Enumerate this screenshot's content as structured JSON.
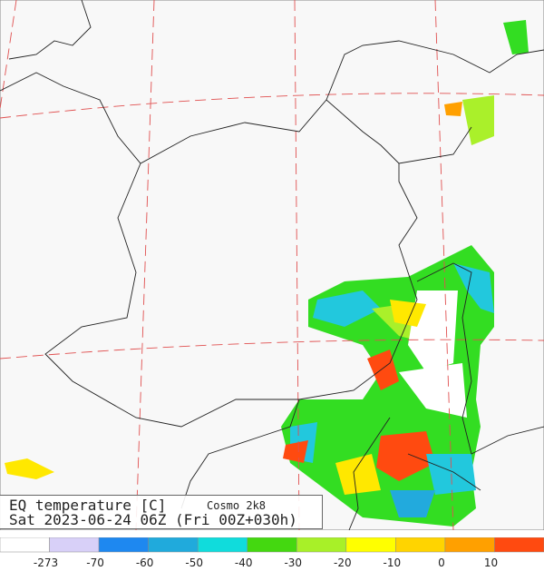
{
  "header": {
    "title": "EQ temperature [C]",
    "model": "Cosmo 2k8",
    "valid_time": "Sat 2023-06-24 06Z (Fri 00Z+030h)"
  },
  "legend": {
    "colors": [
      "#ffffff",
      "#d8d0f8",
      "#1e88f0",
      "#20aadc",
      "#10dcdc",
      "#44d810",
      "#a8f028",
      "#ffff00",
      "#ffd400",
      "#ffa000",
      "#ff4a10"
    ],
    "labels": [
      "-273",
      "-70",
      "-60",
      "-50",
      "-40",
      "-30",
      "-20",
      "-10",
      "0",
      "10"
    ]
  }
}
